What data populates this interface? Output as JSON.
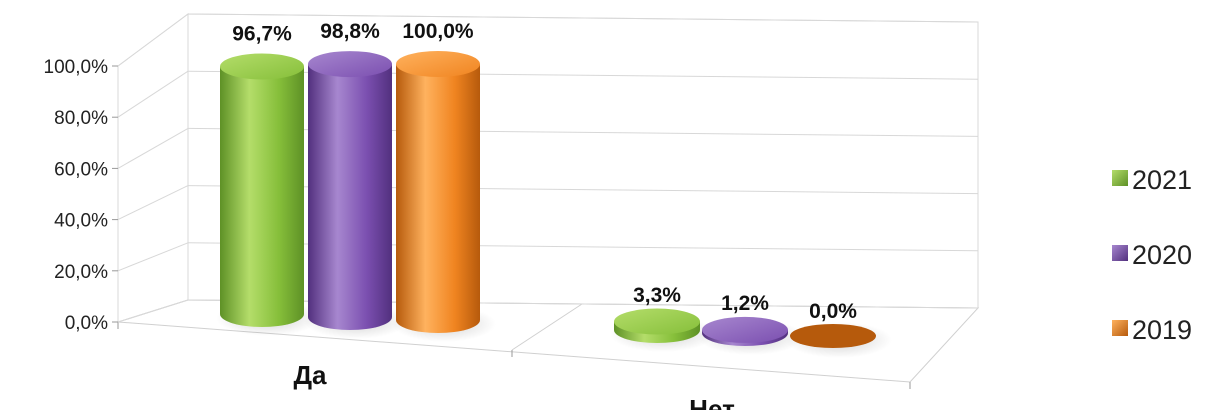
{
  "chart_data": {
    "type": "bar",
    "categories": [
      "Да",
      "Нет"
    ],
    "series": [
      {
        "name": "2021",
        "values": [
          96.7,
          3.3
        ],
        "labels": [
          "96,7%",
          "3,3%"
        ]
      },
      {
        "name": "2020",
        "values": [
          98.8,
          1.2
        ],
        "labels": [
          "98,8%",
          "1,2%"
        ]
      },
      {
        "name": "2019",
        "values": [
          100.0,
          0.0
        ],
        "labels": [
          "100,0%",
          "0,0%"
        ]
      }
    ],
    "yticks": [
      "0,0%",
      "20,0%",
      "40,0%",
      "60,0%",
      "80,0%",
      "100,0%"
    ],
    "ylim": [
      0,
      100
    ],
    "grid": true,
    "legend": "right",
    "colors": {
      "2021": {
        "light": "#b4dd6a",
        "base": "#86bf3a",
        "dark": "#5e9126"
      },
      "2020": {
        "light": "#a787cf",
        "base": "#7b4fb0",
        "dark": "#52307e"
      },
      "2019": {
        "light": "#ffb25e",
        "base": "#f08420",
        "dark": "#b65a0c"
      }
    }
  }
}
